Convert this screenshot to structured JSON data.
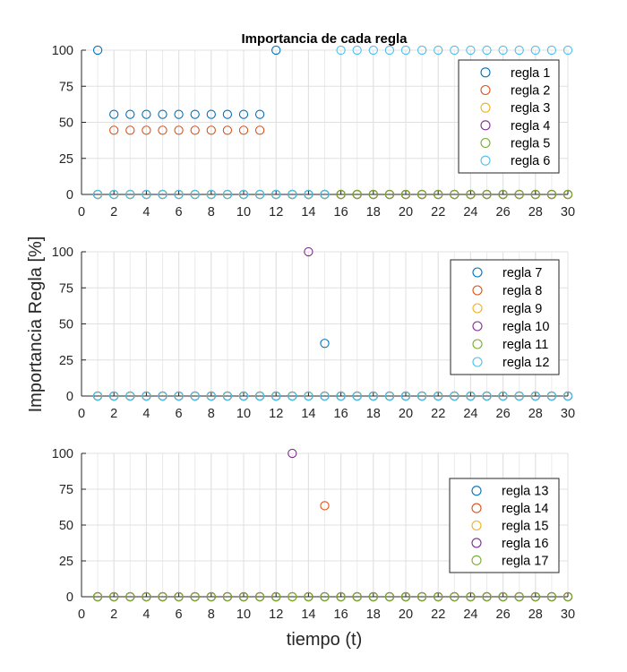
{
  "figure": {
    "title": "Importancia de cada regla",
    "ylabel": "Importancia Regla [%]",
    "xlabel": "tiempo (t)"
  },
  "chart_data": [
    {
      "type": "scatter",
      "title": "Importancia de cada regla",
      "xlim": [
        0,
        30
      ],
      "ylim": [
        0,
        100
      ],
      "xticks": [
        0,
        2,
        4,
        6,
        8,
        10,
        12,
        14,
        16,
        18,
        20,
        22,
        24,
        26,
        28,
        30
      ],
      "yticks": [
        0,
        25,
        50,
        75,
        100
      ],
      "grid": true,
      "legend_position": "top-right",
      "series": [
        {
          "name": "regla 1",
          "color": "#0072BD",
          "x": [
            1,
            2,
            3,
            4,
            5,
            6,
            7,
            8,
            9,
            10,
            11,
            12,
            13,
            14,
            15,
            16,
            17,
            18,
            19,
            20,
            21,
            22,
            23,
            24,
            25,
            26,
            27,
            28,
            29,
            30
          ],
          "y": [
            100,
            55.5,
            55.5,
            55.5,
            55.5,
            55.5,
            55.5,
            55.5,
            55.5,
            55.5,
            55.5,
            100,
            0,
            0,
            0,
            0,
            0,
            0,
            0,
            0,
            0,
            0,
            0,
            0,
            0,
            0,
            0,
            0,
            0,
            0
          ]
        },
        {
          "name": "regla 2",
          "color": "#D95319",
          "x": [
            1,
            2,
            3,
            4,
            5,
            6,
            7,
            8,
            9,
            10,
            11,
            12,
            13,
            14,
            15,
            16,
            17,
            18,
            19,
            20,
            21,
            22,
            23,
            24,
            25,
            26,
            27,
            28,
            29,
            30
          ],
          "y": [
            0,
            44.5,
            44.5,
            44.5,
            44.5,
            44.5,
            44.5,
            44.5,
            44.5,
            44.5,
            44.5,
            0,
            0,
            0,
            0,
            0,
            0,
            0,
            0,
            0,
            0,
            0,
            0,
            0,
            0,
            0,
            0,
            0,
            0,
            0
          ]
        },
        {
          "name": "regla 3",
          "color": "#EDB120",
          "x": [
            1,
            2,
            3,
            4,
            5,
            6,
            7,
            8,
            9,
            10,
            11,
            12,
            13,
            14,
            15,
            16,
            17,
            18,
            19,
            20,
            21,
            22,
            23,
            24,
            25,
            26,
            27,
            28,
            29,
            30
          ],
          "y": [
            0,
            0,
            0,
            0,
            0,
            0,
            0,
            0,
            0,
            0,
            0,
            0,
            0,
            0,
            0,
            0,
            0,
            0,
            0,
            0,
            0,
            0,
            0,
            0,
            0,
            0,
            0,
            0,
            0,
            0
          ]
        },
        {
          "name": "regla 4",
          "color": "#7E2F8E",
          "x": [
            1,
            2,
            3,
            4,
            5,
            6,
            7,
            8,
            9,
            10,
            11,
            12,
            13,
            14,
            15,
            16,
            17,
            18,
            19,
            20,
            21,
            22,
            23,
            24,
            25,
            26,
            27,
            28,
            29,
            30
          ],
          "y": [
            0,
            0,
            0,
            0,
            0,
            0,
            0,
            0,
            0,
            0,
            0,
            0,
            0,
            0,
            0,
            0,
            0,
            0,
            0,
            0,
            0,
            0,
            0,
            0,
            0,
            0,
            0,
            0,
            0,
            0
          ]
        },
        {
          "name": "regla 5",
          "color": "#77AC30",
          "x": [
            1,
            2,
            3,
            4,
            5,
            6,
            7,
            8,
            9,
            10,
            11,
            12,
            13,
            14,
            15,
            16,
            17,
            18,
            19,
            20,
            21,
            22,
            23,
            24,
            25,
            26,
            27,
            28,
            29,
            30
          ],
          "y": [
            0,
            0,
            0,
            0,
            0,
            0,
            0,
            0,
            0,
            0,
            0,
            0,
            0,
            0,
            0,
            0,
            0,
            0,
            0,
            0,
            0,
            0,
            0,
            0,
            0,
            0,
            0,
            0,
            0,
            0
          ]
        },
        {
          "name": "regla 6",
          "color": "#4DBEEE",
          "x": [
            1,
            2,
            3,
            4,
            5,
            6,
            7,
            8,
            9,
            10,
            11,
            12,
            13,
            14,
            15,
            16,
            17,
            18,
            19,
            20,
            21,
            22,
            23,
            24,
            25,
            26,
            27,
            28,
            29,
            30
          ],
          "y": [
            0,
            0,
            0,
            0,
            0,
            0,
            0,
            0,
            0,
            0,
            0,
            0,
            0,
            0,
            0,
            100,
            100,
            100,
            100,
            100,
            100,
            100,
            100,
            100,
            100,
            100,
            100,
            100,
            100,
            100
          ]
        }
      ]
    },
    {
      "type": "scatter",
      "xlim": [
        0,
        30
      ],
      "ylim": [
        0,
        100
      ],
      "xticks": [
        0,
        2,
        4,
        6,
        8,
        10,
        12,
        14,
        16,
        18,
        20,
        22,
        24,
        26,
        28,
        30
      ],
      "yticks": [
        0,
        25,
        50,
        75,
        100
      ],
      "grid": true,
      "legend_position": "top-right",
      "series": [
        {
          "name": "regla 7",
          "color": "#0072BD",
          "x": [
            1,
            2,
            3,
            4,
            5,
            6,
            7,
            8,
            9,
            10,
            11,
            12,
            13,
            14,
            15,
            16,
            17,
            18,
            19,
            20,
            21,
            22,
            23,
            24,
            25,
            26,
            27,
            28,
            29,
            30
          ],
          "y": [
            0,
            0,
            0,
            0,
            0,
            0,
            0,
            0,
            0,
            0,
            0,
            0,
            0,
            0,
            36.5,
            0,
            0,
            0,
            0,
            0,
            0,
            0,
            0,
            0,
            0,
            0,
            0,
            0,
            0,
            0
          ]
        },
        {
          "name": "regla 8",
          "color": "#D95319",
          "x": [
            1,
            2,
            3,
            4,
            5,
            6,
            7,
            8,
            9,
            10,
            11,
            12,
            13,
            14,
            15,
            16,
            17,
            18,
            19,
            20,
            21,
            22,
            23,
            24,
            25,
            26,
            27,
            28,
            29,
            30
          ],
          "y": [
            0,
            0,
            0,
            0,
            0,
            0,
            0,
            0,
            0,
            0,
            0,
            0,
            0,
            0,
            0,
            0,
            0,
            0,
            0,
            0,
            0,
            0,
            0,
            0,
            0,
            0,
            0,
            0,
            0,
            0
          ]
        },
        {
          "name": "regla 9",
          "color": "#EDB120",
          "x": [
            1,
            2,
            3,
            4,
            5,
            6,
            7,
            8,
            9,
            10,
            11,
            12,
            13,
            14,
            15,
            16,
            17,
            18,
            19,
            20,
            21,
            22,
            23,
            24,
            25,
            26,
            27,
            28,
            29,
            30
          ],
          "y": [
            0,
            0,
            0,
            0,
            0,
            0,
            0,
            0,
            0,
            0,
            0,
            0,
            0,
            0,
            0,
            0,
            0,
            0,
            0,
            0,
            0,
            0,
            0,
            0,
            0,
            0,
            0,
            0,
            0,
            0
          ]
        },
        {
          "name": "regla 10",
          "color": "#7E2F8E",
          "x": [
            1,
            2,
            3,
            4,
            5,
            6,
            7,
            8,
            9,
            10,
            11,
            12,
            13,
            14,
            15,
            16,
            17,
            18,
            19,
            20,
            21,
            22,
            23,
            24,
            25,
            26,
            27,
            28,
            29,
            30
          ],
          "y": [
            0,
            0,
            0,
            0,
            0,
            0,
            0,
            0,
            0,
            0,
            0,
            0,
            0,
            100,
            0,
            0,
            0,
            0,
            0,
            0,
            0,
            0,
            0,
            0,
            0,
            0,
            0,
            0,
            0,
            0
          ]
        },
        {
          "name": "regla 11",
          "color": "#77AC30",
          "x": [
            1,
            2,
            3,
            4,
            5,
            6,
            7,
            8,
            9,
            10,
            11,
            12,
            13,
            14,
            15,
            16,
            17,
            18,
            19,
            20,
            21,
            22,
            23,
            24,
            25,
            26,
            27,
            28,
            29,
            30
          ],
          "y": [
            0,
            0,
            0,
            0,
            0,
            0,
            0,
            0,
            0,
            0,
            0,
            0,
            0,
            0,
            0,
            0,
            0,
            0,
            0,
            0,
            0,
            0,
            0,
            0,
            0,
            0,
            0,
            0,
            0,
            0
          ]
        },
        {
          "name": "regla 12",
          "color": "#4DBEEE",
          "x": [
            1,
            2,
            3,
            4,
            5,
            6,
            7,
            8,
            9,
            10,
            11,
            12,
            13,
            14,
            15,
            16,
            17,
            18,
            19,
            20,
            21,
            22,
            23,
            24,
            25,
            26,
            27,
            28,
            29,
            30
          ],
          "y": [
            0,
            0,
            0,
            0,
            0,
            0,
            0,
            0,
            0,
            0,
            0,
            0,
            0,
            0,
            0,
            0,
            0,
            0,
            0,
            0,
            0,
            0,
            0,
            0,
            0,
            0,
            0,
            0,
            0,
            0
          ]
        }
      ]
    },
    {
      "type": "scatter",
      "xlabel": "tiempo (t)",
      "xlim": [
        0,
        30
      ],
      "ylim": [
        0,
        100
      ],
      "xticks": [
        0,
        2,
        4,
        6,
        8,
        10,
        12,
        14,
        16,
        18,
        20,
        22,
        24,
        26,
        28,
        30
      ],
      "yticks": [
        0,
        25,
        50,
        75,
        100
      ],
      "grid": true,
      "legend_position": "top-right",
      "series": [
        {
          "name": "regla 13",
          "color": "#0072BD",
          "x": [
            1,
            2,
            3,
            4,
            5,
            6,
            7,
            8,
            9,
            10,
            11,
            12,
            13,
            14,
            15,
            16,
            17,
            18,
            19,
            20,
            21,
            22,
            23,
            24,
            25,
            26,
            27,
            28,
            29,
            30
          ],
          "y": [
            0,
            0,
            0,
            0,
            0,
            0,
            0,
            0,
            0,
            0,
            0,
            0,
            0,
            0,
            0,
            0,
            0,
            0,
            0,
            0,
            0,
            0,
            0,
            0,
            0,
            0,
            0,
            0,
            0,
            0
          ]
        },
        {
          "name": "regla 14",
          "color": "#D95319",
          "x": [
            1,
            2,
            3,
            4,
            5,
            6,
            7,
            8,
            9,
            10,
            11,
            12,
            13,
            14,
            15,
            16,
            17,
            18,
            19,
            20,
            21,
            22,
            23,
            24,
            25,
            26,
            27,
            28,
            29,
            30
          ],
          "y": [
            0,
            0,
            0,
            0,
            0,
            0,
            0,
            0,
            0,
            0,
            0,
            0,
            0,
            0,
            63.5,
            0,
            0,
            0,
            0,
            0,
            0,
            0,
            0,
            0,
            0,
            0,
            0,
            0,
            0,
            0
          ]
        },
        {
          "name": "regla 15",
          "color": "#EDB120",
          "x": [
            1,
            2,
            3,
            4,
            5,
            6,
            7,
            8,
            9,
            10,
            11,
            12,
            13,
            14,
            15,
            16,
            17,
            18,
            19,
            20,
            21,
            22,
            23,
            24,
            25,
            26,
            27,
            28,
            29,
            30
          ],
          "y": [
            0,
            0,
            0,
            0,
            0,
            0,
            0,
            0,
            0,
            0,
            0,
            0,
            0,
            0,
            0,
            0,
            0,
            0,
            0,
            0,
            0,
            0,
            0,
            0,
            0,
            0,
            0,
            0,
            0,
            0
          ]
        },
        {
          "name": "regla 16",
          "color": "#7E2F8E",
          "x": [
            1,
            2,
            3,
            4,
            5,
            6,
            7,
            8,
            9,
            10,
            11,
            12,
            13,
            14,
            15,
            16,
            17,
            18,
            19,
            20,
            21,
            22,
            23,
            24,
            25,
            26,
            27,
            28,
            29,
            30
          ],
          "y": [
            0,
            0,
            0,
            0,
            0,
            0,
            0,
            0,
            0,
            0,
            0,
            0,
            100,
            0,
            0,
            0,
            0,
            0,
            0,
            0,
            0,
            0,
            0,
            0,
            0,
            0,
            0,
            0,
            0,
            0
          ]
        },
        {
          "name": "regla 17",
          "color": "#77AC30",
          "x": [
            1,
            2,
            3,
            4,
            5,
            6,
            7,
            8,
            9,
            10,
            11,
            12,
            13,
            14,
            15,
            16,
            17,
            18,
            19,
            20,
            21,
            22,
            23,
            24,
            25,
            26,
            27,
            28,
            29,
            30
          ],
          "y": [
            0,
            0,
            0,
            0,
            0,
            0,
            0,
            0,
            0,
            0,
            0,
            0,
            0,
            0,
            0,
            0,
            0,
            0,
            0,
            0,
            0,
            0,
            0,
            0,
            0,
            0,
            0,
            0,
            0,
            0
          ]
        }
      ]
    }
  ]
}
